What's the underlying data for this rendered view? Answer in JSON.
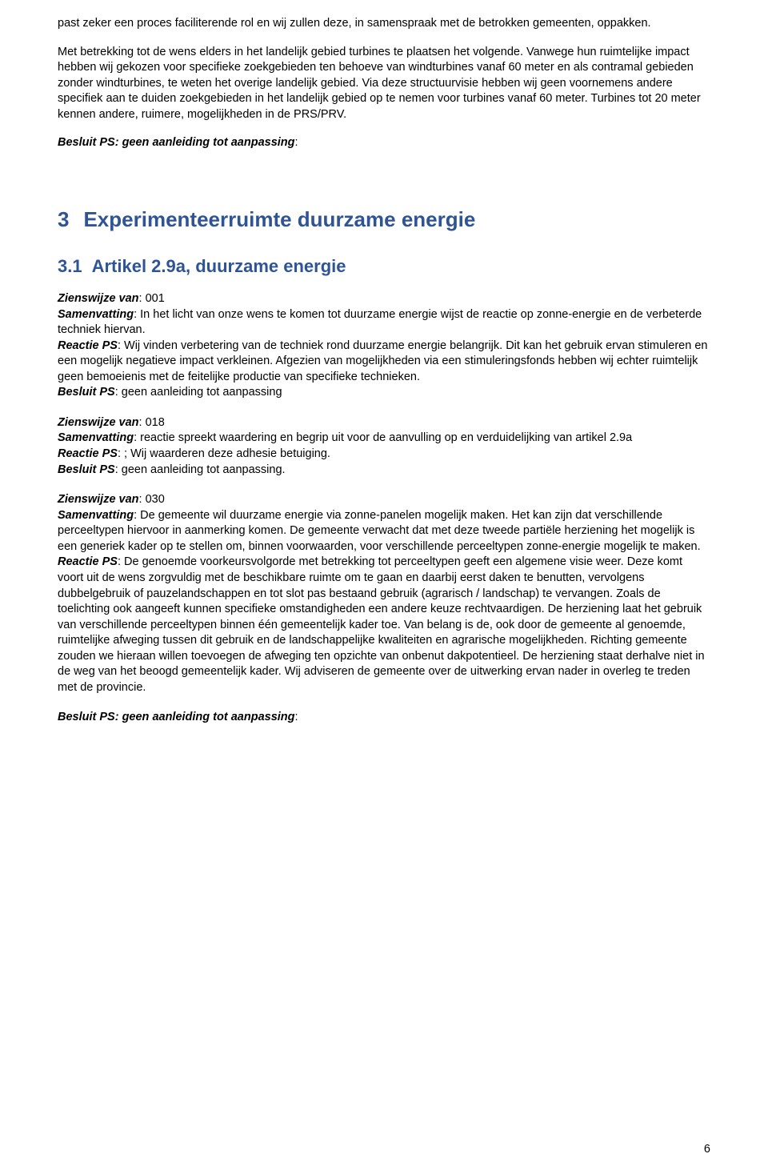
{
  "intro": {
    "para1": "past zeker een proces faciliterende rol en wij zullen deze, in samenspraak met de betrokken gemeenten, oppakken.",
    "para2": "Met betrekking tot de wens elders in het landelijk gebied turbines te plaatsen het volgende. Vanwege hun ruimtelijke impact hebben wij gekozen voor specifieke zoekgebieden ten behoeve van windturbines vanaf 60 meter en als contramal gebieden zonder windturbines, te weten het overige landelijk gebied. Via deze structuurvisie hebben wij geen voornemens andere specifiek aan te duiden zoekgebieden in het landelijk gebied op te nemen voor turbines vanaf 60 meter. Turbines tot 20 meter kennen andere, ruimere, mogelijkheden in de PRS/PRV.",
    "besluit_label": "Besluit PS: geen aanleiding tot aanpassing",
    "besluit_colon": ":"
  },
  "section3": {
    "number": "3",
    "title": "Experimenteerruimte duurzame energie",
    "sub_number": "3.1",
    "sub_title": "Artikel 2.9a, duurzame energie"
  },
  "z001": {
    "zienswijze_label": "Zienswijze van",
    "zienswijze_val": ": 001",
    "samenvatting_label": "Samenvatting",
    "samenvatting_val": ": In het licht van onze wens te komen tot duurzame energie wijst de reactie op zonne-energie en de verbeterde techniek hiervan.",
    "reactie_label": "Reactie PS",
    "reactie_val": ": Wij vinden verbetering van de techniek rond duurzame energie belangrijk. Dit kan het gebruik ervan stimuleren en een mogelijk negatieve impact verkleinen. Afgezien van mogelijkheden via een stimuleringsfonds hebben wij echter ruimtelijk geen bemoeienis met de feitelijke productie van specifieke technieken.",
    "besluit_label": "Besluit PS",
    "besluit_val": ": geen aanleiding tot aanpassing"
  },
  "z018": {
    "zienswijze_label": "Zienswijze van",
    "zienswijze_val": ": 018",
    "samenvatting_label": "Samenvatting",
    "samenvatting_val": ": reactie spreekt waardering en begrip uit voor de aanvulling op en verduidelijking van artikel 2.9a",
    "reactie_label": "Reactie PS",
    "reactie_val": ": ; Wij waarderen deze adhesie betuiging.",
    "besluit_label": "Besluit PS",
    "besluit_val": ": geen aanleiding tot aanpassing."
  },
  "z030": {
    "zienswijze_label": "Zienswijze van",
    "zienswijze_val": ": 030",
    "samenvatting_label": "Samenvatting",
    "samenvatting_val": ": De gemeente wil duurzame energie via zonne-panelen mogelijk maken. Het kan zijn dat verschillende perceeltypen hiervoor in aanmerking komen. De gemeente verwacht dat met deze tweede partiële herziening het mogelijk is een generiek kader op te stellen om, binnen voorwaarden, voor verschillende perceeltypen zonne-energie mogelijk te maken.",
    "reactie_label": "Reactie PS",
    "reactie_val": ": De genoemde voorkeursvolgorde met betrekking tot perceeltypen geeft een algemene visie weer. Deze komt voort uit de wens zorgvuldig met de beschikbare ruimte om te gaan en daarbij eerst daken te benutten, vervolgens dubbelgebruik of pauzelandschappen en tot slot pas bestaand gebruik (agrarisch / landschap) te vervangen. Zoals de toelichting ook aangeeft kunnen specifieke omstandigheden een andere keuze rechtvaardigen. De herziening laat het gebruik van verschillende perceeltypen binnen één gemeentelijk kader toe. Van belang is de, ook door de gemeente al genoemde, ruimtelijke afweging tussen dit gebruik en de landschappelijke kwaliteiten en agrarische mogelijkheden. Richting gemeente zouden we hieraan willen toevoegen de afweging ten opzichte van onbenut dakpotentieel. De herziening staat derhalve niet in de weg van het beoogd gemeentelijk kader. Wij adviseren de gemeente over de uitwerking ervan nader in overleg te treden met de provincie."
  },
  "final_besluit": {
    "label": "Besluit PS: geen aanleiding tot aanpassing",
    "colon": ":"
  },
  "page_number": "6"
}
